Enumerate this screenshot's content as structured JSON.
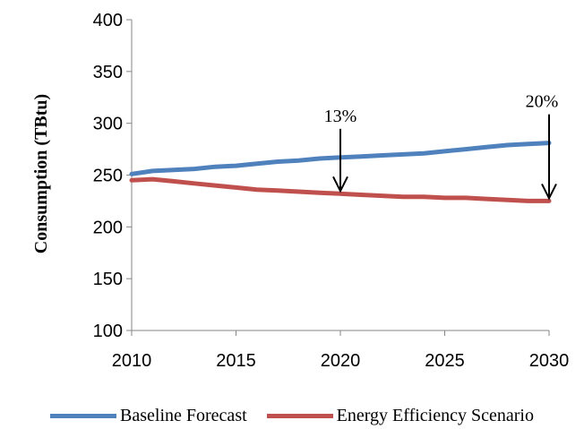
{
  "chart_data": {
    "type": "line",
    "title": "",
    "xlabel": "",
    "ylabel": "Consumption (TBtu)",
    "xlim": [
      2010,
      2030
    ],
    "ylim": [
      100,
      400
    ],
    "x_ticks": [
      2010,
      2015,
      2020,
      2025,
      2030
    ],
    "y_ticks": [
      100,
      150,
      200,
      250,
      300,
      350,
      400
    ],
    "grid": false,
    "legend_position": "bottom",
    "series": [
      {
        "name": "Baseline Forecast",
        "color": "#4F81BD",
        "x": [
          2010,
          2011,
          2012,
          2013,
          2014,
          2015,
          2016,
          2017,
          2018,
          2019,
          2020,
          2021,
          2022,
          2023,
          2024,
          2025,
          2026,
          2027,
          2028,
          2029,
          2030
        ],
        "y": [
          251,
          254,
          255,
          256,
          258,
          259,
          261,
          263,
          264,
          266,
          267,
          268,
          269,
          270,
          271,
          273,
          275,
          277,
          279,
          280,
          281
        ]
      },
      {
        "name": "Energy Efficiency Scenario",
        "color": "#C0504D",
        "x": [
          2010,
          2011,
          2012,
          2013,
          2014,
          2015,
          2016,
          2017,
          2018,
          2019,
          2020,
          2021,
          2022,
          2023,
          2024,
          2025,
          2026,
          2027,
          2028,
          2029,
          2030
        ],
        "y": [
          245,
          246,
          244,
          242,
          240,
          238,
          236,
          235,
          234,
          233,
          232,
          231,
          230,
          229,
          229,
          228,
          228,
          227,
          226,
          225,
          225
        ]
      }
    ],
    "annotations": [
      {
        "label": "13%",
        "x": 2020,
        "from": 267,
        "to": 232
      },
      {
        "label": "20%",
        "x": 2030,
        "from": 281,
        "to": 225
      }
    ]
  }
}
